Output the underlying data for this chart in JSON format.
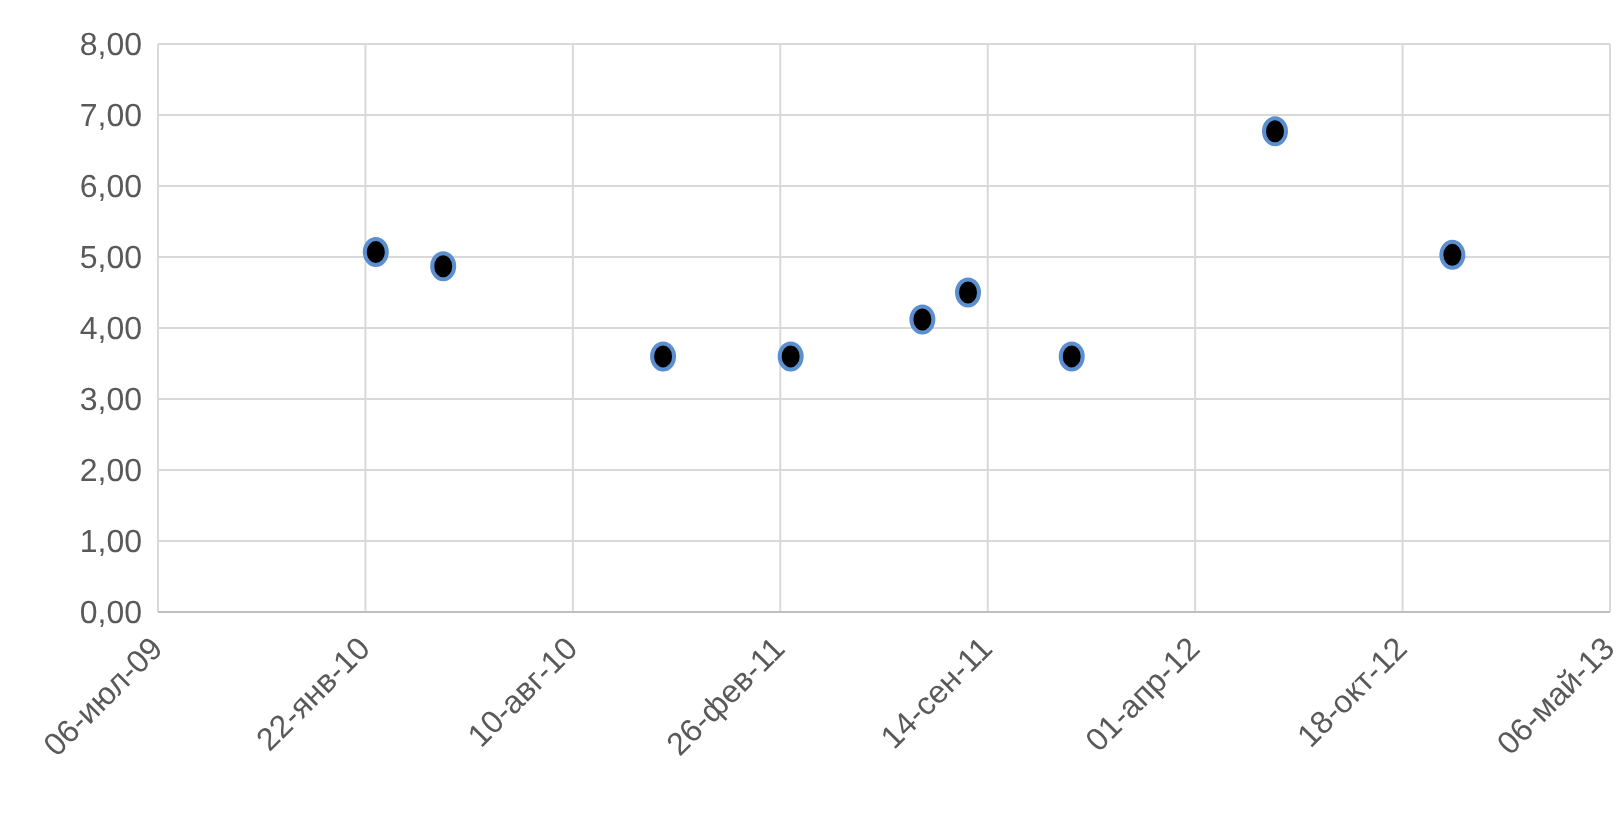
{
  "chart_data": {
    "type": "scatter",
    "x": [
      "2010-02-01",
      "2010-04-07",
      "2010-11-05",
      "2011-03-08",
      "2011-07-13",
      "2011-08-26",
      "2011-12-04",
      "2012-06-17",
      "2012-12-05"
    ],
    "series": [
      {
        "color": "#000000",
        "values": [
          5.07,
          4.87,
          3.6,
          3.6,
          4.12,
          4.5,
          3.6,
          6.77,
          5.03
        ]
      }
    ],
    "marker": "circle",
    "grid": true,
    "legend": false,
    "xlim": [
      "2009-07-06",
      "2013-05-06"
    ],
    "xticks": [
      {
        "value": "2009-07-06",
        "label": "06-июл-09"
      },
      {
        "value": "2010-01-22",
        "label": "22-янв-10"
      },
      {
        "value": "2010-08-10",
        "label": "10-авг-10"
      },
      {
        "value": "2011-02-26",
        "label": "26-фев-11"
      },
      {
        "value": "2011-09-14",
        "label": "14-сен-11"
      },
      {
        "value": "2012-04-01",
        "label": "01-апр-12"
      },
      {
        "value": "2012-10-18",
        "label": "18-окт-12"
      },
      {
        "value": "2013-05-06",
        "label": "06-май-13"
      }
    ],
    "ylim": [
      0,
      8
    ],
    "yticks": [
      {
        "value": 0,
        "label": "0,00"
      },
      {
        "value": 1,
        "label": "1,00"
      },
      {
        "value": 2,
        "label": "2,00"
      },
      {
        "value": 3,
        "label": "3,00"
      },
      {
        "value": 4,
        "label": "4,00"
      },
      {
        "value": 5,
        "label": "5,00"
      },
      {
        "value": 6,
        "label": "6,00"
      },
      {
        "value": 7,
        "label": "7,00"
      },
      {
        "value": 8,
        "label": "8,00"
      }
    ]
  }
}
